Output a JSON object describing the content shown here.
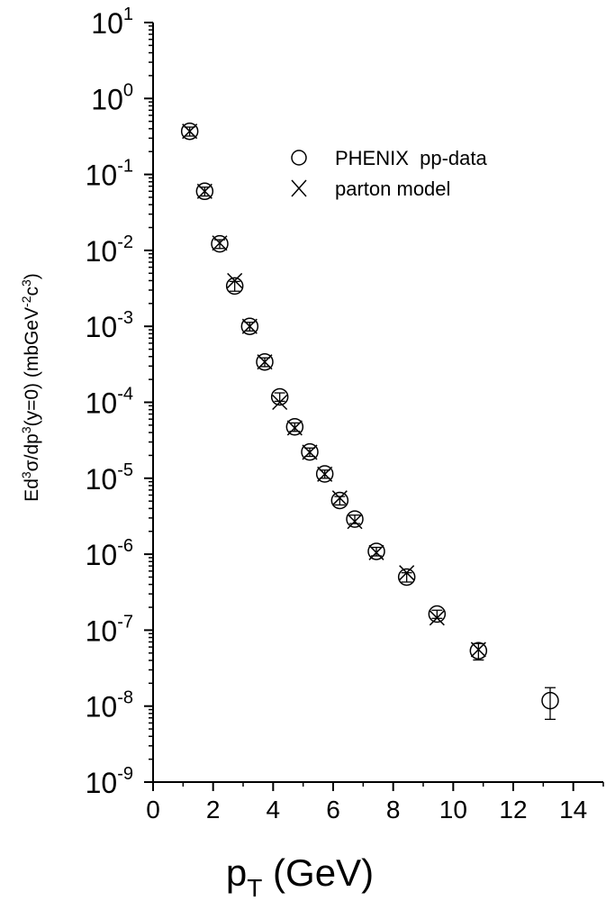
{
  "chart_data": {
    "type": "scatter",
    "xlabel": "p",
    "xlabel_sub": "T",
    "xlabel_units": " (GeV)",
    "ylabel_parts": {
      "a": "Ed",
      "a_sup": "3",
      "b": "σ/dp",
      "b_sup": "3",
      "c": "(y=0)   (mbGeV",
      "c_sup": "-2",
      "d": "c",
      "d_sup": "3",
      "e": ")"
    },
    "xlim": [
      0,
      15
    ],
    "ylim_log10": [
      -9,
      1
    ],
    "yscale": "log",
    "x_ticks": [
      "0",
      "2",
      "4",
      "6",
      "8",
      "10",
      "12",
      "14"
    ],
    "y_ticks": [
      {
        "base": "10",
        "exp": "-9"
      },
      {
        "base": "10",
        "exp": "-8"
      },
      {
        "base": "10",
        "exp": "-7"
      },
      {
        "base": "10",
        "exp": "-6"
      },
      {
        "base": "10",
        "exp": "-5"
      },
      {
        "base": "10",
        "exp": "-4"
      },
      {
        "base": "10",
        "exp": "-3"
      },
      {
        "base": "10",
        "exp": "-2"
      },
      {
        "base": "10",
        "exp": "-1"
      },
      {
        "base": "10",
        "exp": "0"
      },
      {
        "base": "10",
        "exp": "1"
      }
    ],
    "legend_position": "upper-right",
    "series": [
      {
        "name": "PHENIX  pp-data",
        "marker": "circle",
        "x": [
          1.22,
          1.72,
          2.22,
          2.72,
          3.22,
          3.72,
          4.22,
          4.72,
          5.22,
          5.72,
          6.22,
          6.72,
          7.44,
          8.45,
          9.46,
          10.84,
          13.23
        ],
        "y": [
          0.37,
          0.06,
          0.0122,
          0.0034,
          0.001,
          0.00034,
          0.000118,
          4.75e-05,
          2.22e-05,
          1.14e-05,
          5.1e-06,
          2.9e-06,
          1.09e-06,
          5e-07,
          1.63e-07,
          5.35e-08,
          1.18e-08
        ],
        "yerr_low": [
          0.05,
          0.008,
          0.0016,
          0.0005,
          0.00013,
          4.5e-05,
          1.5e-05,
          6e-06,
          2.8e-06,
          1.4e-06,
          6.5e-07,
          3.7e-07,
          1.4e-07,
          7e-08,
          2e-08,
          1.3e-08,
          5.1e-09
        ],
        "yerr_high": [
          0.05,
          0.008,
          0.0016,
          0.0005,
          0.00013,
          4.5e-05,
          1.5e-05,
          6e-06,
          2.8e-06,
          1.4e-06,
          6.5e-07,
          3.7e-07,
          1.4e-07,
          7e-08,
          2e-08,
          1.3e-08,
          5.7e-09
        ]
      },
      {
        "name": "parton model",
        "marker": "cross",
        "x": [
          1.22,
          1.72,
          2.22,
          2.72,
          3.22,
          3.72,
          4.22,
          4.72,
          5.22,
          5.72,
          6.22,
          6.72,
          7.44,
          8.45,
          9.46,
          10.84
        ],
        "y": [
          0.37,
          0.06,
          0.0125,
          0.004,
          0.001,
          0.00034,
          0.0001,
          4.6e-05,
          2.2e-05,
          1.13e-05,
          5.5e-06,
          2.7e-06,
          1.05e-06,
          5.7e-07,
          1.45e-07,
          5.55e-08
        ]
      }
    ]
  }
}
